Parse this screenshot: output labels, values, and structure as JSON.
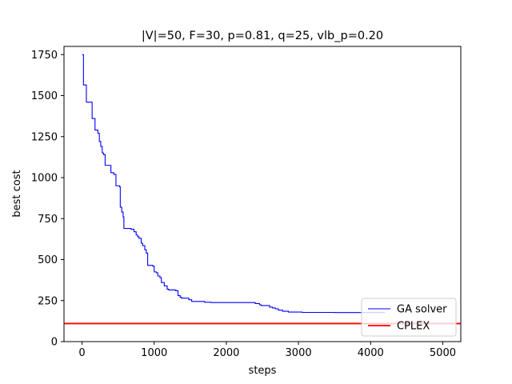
{
  "chart_data": {
    "type": "line",
    "title": "|V|=50, F=30, p=0.81, q=25, vlb_p=0.20",
    "xlabel": "steps",
    "ylabel": "best cost",
    "xlim": [
      -250,
      5250
    ],
    "ylim": [
      0,
      1800
    ],
    "xticks": [
      0,
      1000,
      2000,
      3000,
      4000,
      5000
    ],
    "yticks": [
      0,
      250,
      500,
      750,
      1000,
      1250,
      1500,
      1750
    ],
    "grid": false,
    "legend_position": "lower-right",
    "series": [
      {
        "name": "GA solver",
        "color": "#0000ff",
        "style": "step",
        "points": [
          [
            0,
            1750
          ],
          [
            20,
            1565
          ],
          [
            60,
            1460
          ],
          [
            140,
            1360
          ],
          [
            180,
            1290
          ],
          [
            220,
            1270
          ],
          [
            240,
            1220
          ],
          [
            260,
            1190
          ],
          [
            280,
            1150
          ],
          [
            300,
            1140
          ],
          [
            320,
            1075
          ],
          [
            400,
            1030
          ],
          [
            440,
            1020
          ],
          [
            470,
            950
          ],
          [
            520,
            945
          ],
          [
            530,
            820
          ],
          [
            550,
            790
          ],
          [
            570,
            760
          ],
          [
            580,
            690
          ],
          [
            680,
            685
          ],
          [
            720,
            670
          ],
          [
            750,
            650
          ],
          [
            770,
            640
          ],
          [
            790,
            630
          ],
          [
            820,
            600
          ],
          [
            840,
            585
          ],
          [
            870,
            560
          ],
          [
            890,
            540
          ],
          [
            910,
            465
          ],
          [
            980,
            460
          ],
          [
            1000,
            425
          ],
          [
            1030,
            420
          ],
          [
            1050,
            400
          ],
          [
            1080,
            390
          ],
          [
            1100,
            360
          ],
          [
            1140,
            340
          ],
          [
            1180,
            320
          ],
          [
            1200,
            315
          ],
          [
            1300,
            310
          ],
          [
            1330,
            280
          ],
          [
            1360,
            270
          ],
          [
            1380,
            265
          ],
          [
            1480,
            255
          ],
          [
            1520,
            245
          ],
          [
            1700,
            240
          ],
          [
            1790,
            238
          ],
          [
            2400,
            232
          ],
          [
            2460,
            225
          ],
          [
            2480,
            220
          ],
          [
            2600,
            210
          ],
          [
            2640,
            205
          ],
          [
            2680,
            200
          ],
          [
            2720,
            192
          ],
          [
            2780,
            185
          ],
          [
            2860,
            180
          ],
          [
            3050,
            178
          ],
          [
            3500,
            177
          ],
          [
            4200,
            177
          ]
        ]
      },
      {
        "name": "CPLEX",
        "color": "#ff0000",
        "style": "hline",
        "y": 110
      }
    ]
  }
}
